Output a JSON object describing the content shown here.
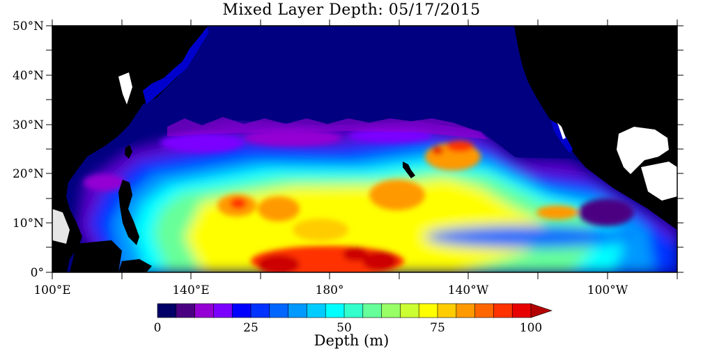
{
  "title": "Mixed Layer Depth: 05/17/2015",
  "lat_labels": [
    "50°N",
    "40°N",
    "30°N",
    "20°N",
    "10°N",
    "0°"
  ],
  "lon_labels": [
    "100°E",
    "140°E",
    "180°",
    "140°W",
    "100°W"
  ],
  "colorbar": {
    "title": "Depth (m)",
    "tick_labels": [
      "0",
      "25",
      "50",
      "75",
      "100"
    ],
    "tick_values": [
      0,
      25,
      50,
      75,
      100
    ],
    "range": [
      0,
      100
    ],
    "step": 5,
    "colors": [
      "#000066",
      "#4b0082",
      "#9400d3",
      "#7b00ff",
      "#0000ff",
      "#0033ff",
      "#0066ff",
      "#0099ff",
      "#00ccff",
      "#00ffff",
      "#33ffcc",
      "#66ff99",
      "#99ff66",
      "#ccff33",
      "#ffff00",
      "#ffcc00",
      "#ff9900",
      "#ff6600",
      "#ff3300",
      "#e60000",
      "#b30000"
    ]
  },
  "colors": {
    "land": "#000000",
    "no_data": "#ffffff",
    "shallow_ocean": "#000080"
  }
}
